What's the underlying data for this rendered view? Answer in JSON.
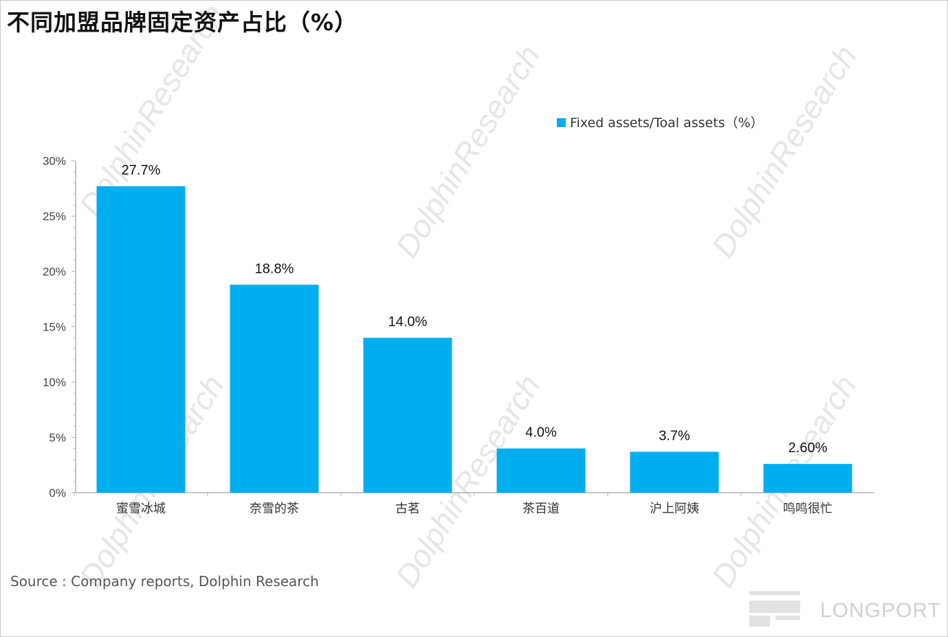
{
  "title": "不同加盟品牌固定资产占比（%）",
  "source": "Source : Company reports, Dolphin Research",
  "watermark": "DolphinResearch",
  "logo_text": "LONGPORT",
  "colors": {
    "bar": "#00aeef",
    "axis": "#b0b0b0",
    "tick_text": "#444444"
  },
  "chart_data": {
    "type": "bar",
    "title": "不同加盟品牌固定资产占比（%）",
    "categories": [
      "蜜雪冰城",
      "奈雪的茶",
      "古茗",
      "茶百道",
      "沪上阿姨",
      "鸣鸣很忙"
    ],
    "series": [
      {
        "name": "Fixed assets/Toal assets（%）",
        "values": [
          27.7,
          18.8,
          14.0,
          4.0,
          3.7,
          2.6
        ],
        "labels": [
          "27.7%",
          "18.8%",
          "14.0%",
          "4.0%",
          "3.7%",
          "2.60%"
        ]
      }
    ],
    "ylim": [
      0,
      30
    ],
    "yticks": [
      "0%",
      "5%",
      "10%",
      "15%",
      "20%",
      "25%",
      "30%"
    ],
    "ytick_values": [
      0,
      5,
      10,
      15,
      20,
      25,
      30
    ],
    "legend_position": "top-right",
    "grid": false
  }
}
